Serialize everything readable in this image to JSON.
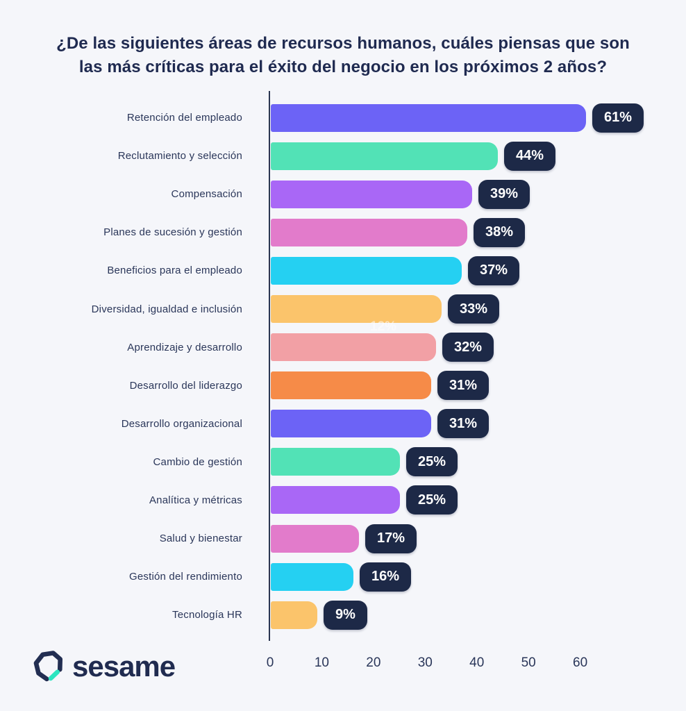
{
  "title": {
    "line1": "¿De las siguientes áreas de recursos humanos, cuáles piensas que son",
    "line2": "las más críticas para el éxito del negocio en los próximos 2 años?"
  },
  "chart_data": {
    "type": "bar",
    "orientation": "horizontal",
    "title": "¿De las siguientes áreas de recursos humanos, cuáles piensas que son las más críticas para el éxito del negocio en los próximos 2 años?",
    "categories": [
      "Retención del empleado",
      "Reclutamiento y selección",
      "Compensación",
      "Planes de sucesión y gestión",
      "Beneficios para el empleado",
      "Diversidad, igualdad e inclusión",
      "Aprendizaje y desarrollo",
      "Desarrollo del liderazgo",
      "Desarrollo organizacional",
      "Cambio de gestión",
      "Analítica y métricas",
      "Salud y bienestar",
      "Gestión del rendimiento",
      "Tecnología HR"
    ],
    "values": [
      61,
      44,
      39,
      38,
      37,
      33,
      32,
      31,
      31,
      25,
      25,
      17,
      16,
      9
    ],
    "value_labels": [
      "61%",
      "44%",
      "39%",
      "38%",
      "37%",
      "33%",
      "32%",
      "31%",
      "31%",
      "25%",
      "25%",
      "17%",
      "16%",
      "9%"
    ],
    "bar_colors": [
      "#6C63F6",
      "#52E2B6",
      "#A967F6",
      "#E27BCB",
      "#25D0F2",
      "#FBC46B",
      "#F2A0A5",
      "#F68B48",
      "#6C63F6",
      "#52E2B6",
      "#A967F6",
      "#E27BCB",
      "#25D0F2",
      "#FBC46B"
    ],
    "x_ticks": [
      0,
      10,
      20,
      30,
      40,
      50,
      60
    ],
    "xlim": [
      0,
      64
    ],
    "xlabel": "",
    "ylabel": "",
    "grid": false,
    "legend": "none",
    "badge_color": "#1D2947",
    "badge_text_color": "#FFFFFF",
    "axis_color": "#2A3550"
  },
  "artifacts": {
    "ghost_label": "12%"
  },
  "footer": {
    "brand": "sesame",
    "logo_icon": "sesame-heptagon-logo",
    "logo_ring_color": "#222E52",
    "logo_dash_color": "#2BE5C0"
  },
  "colors": {
    "background": "#F5F6FA",
    "title_text": "#1F2A50",
    "label_text": "#2A3659"
  }
}
